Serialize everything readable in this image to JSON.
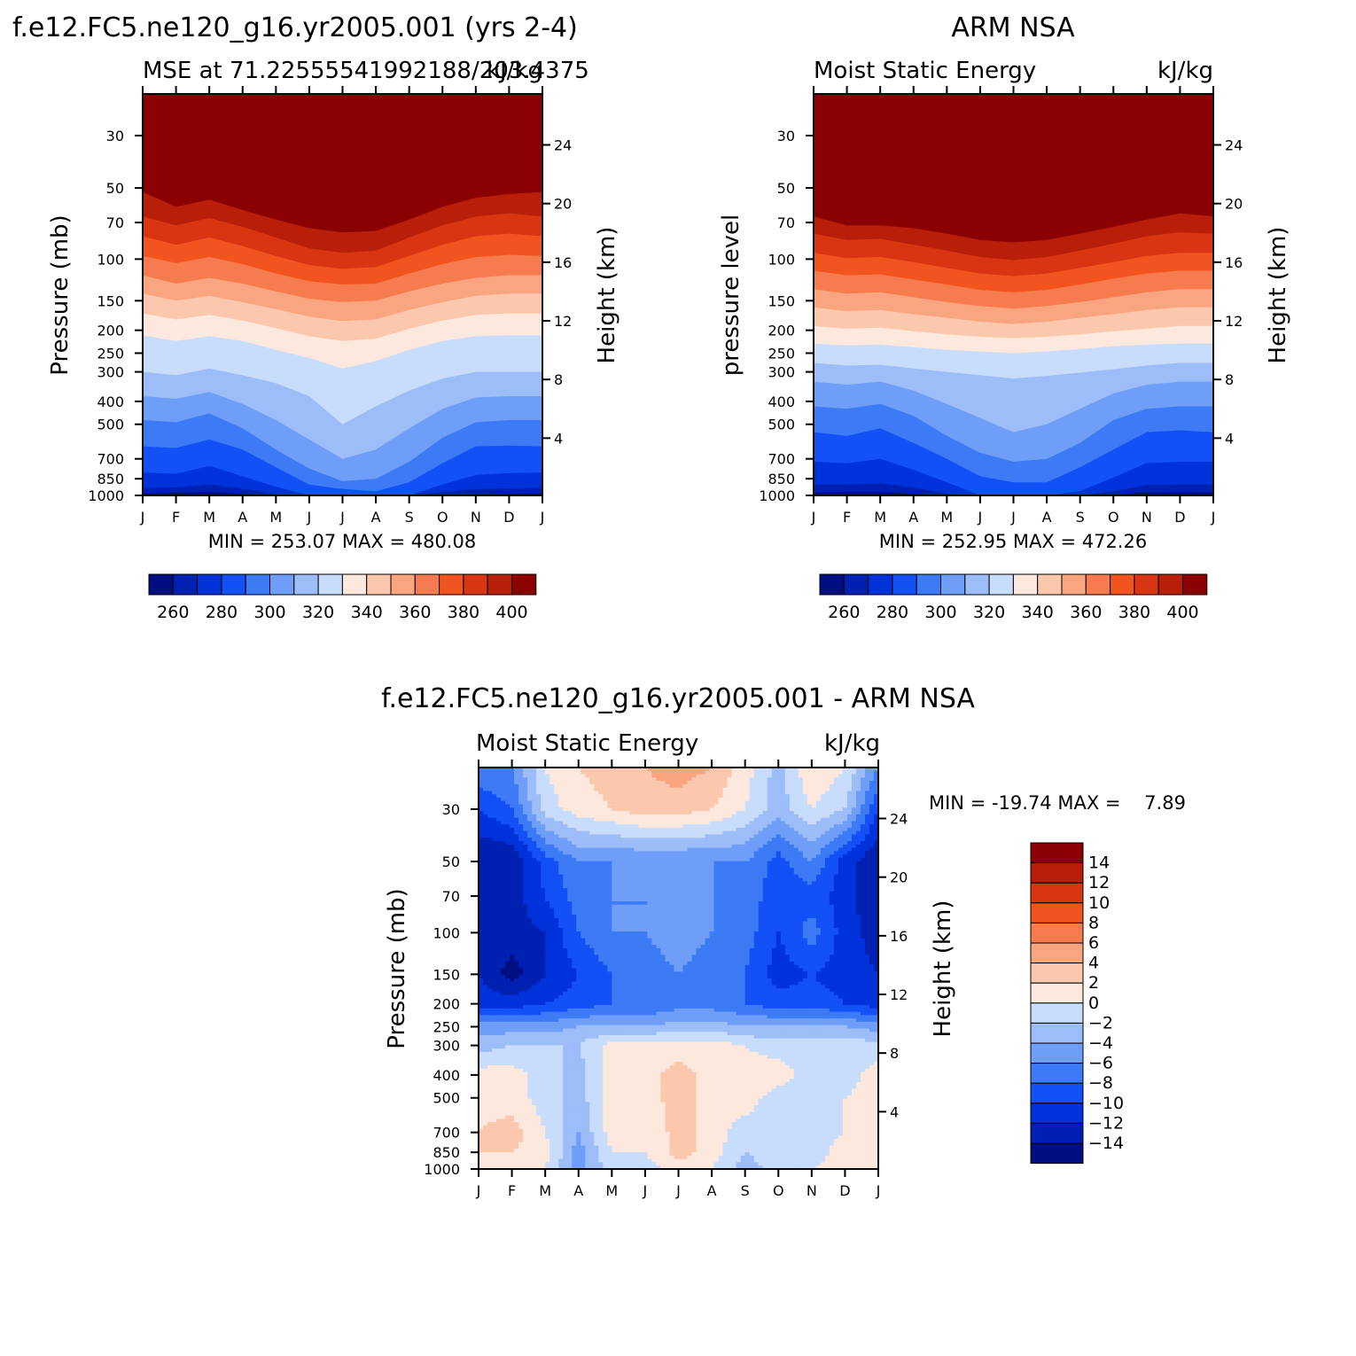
{
  "chart_data": [
    {
      "type": "heatmap",
      "id": "model",
      "title": "f.e12.FC5.ne120_g16.yr2005.001 (yrs 2-4)",
      "left_string": "MSE at 71.22555541992188/203.4375",
      "right_string": "kJ/kg",
      "ylabel": "Pressure (mb)",
      "ylabel_right": "Height (km)",
      "xticks": [
        "J",
        "F",
        "M",
        "A",
        "M",
        "J",
        "J",
        "A",
        "S",
        "O",
        "N",
        "D",
        "J"
      ],
      "pressure_ticks": [
        30,
        50,
        70,
        100,
        150,
        200,
        250,
        300,
        400,
        500,
        700,
        850,
        1000
      ],
      "height_ticks": [
        4,
        8,
        12,
        16,
        20,
        24
      ],
      "stats": "MIN = 253.07 MAX = 480.08",
      "contour_levels": [
        260,
        270,
        280,
        290,
        300,
        310,
        320,
        330,
        340,
        350,
        360,
        370,
        380,
        390,
        400
      ],
      "colorbar_labels": [
        260,
        280,
        300,
        320,
        340,
        360,
        380,
        400
      ],
      "level_boundaries_hPa": {
        "months": [
          1,
          2,
          3,
          4,
          5,
          6,
          7,
          8,
          9,
          10,
          11,
          12,
          13
        ],
        "260": [
          980,
          975,
          965,
          985,
          1000,
          1000,
          1000,
          1000,
          1000,
          1000,
          990,
          985,
          980
        ],
        "270": [
          930,
          925,
          900,
          935,
          990,
          1000,
          1000,
          1000,
          1000,
          970,
          940,
          935,
          930
        ],
        "280": [
          800,
          810,
          750,
          830,
          920,
          1000,
          1000,
          1000,
          1000,
          900,
          820,
          805,
          800
        ],
        "290": [
          620,
          630,
          580,
          640,
          760,
          900,
          940,
          960,
          880,
          730,
          620,
          615,
          620
        ],
        "300": [
          480,
          490,
          450,
          520,
          640,
          770,
          870,
          850,
          720,
          570,
          490,
          480,
          480
        ],
        "310": [
          380,
          390,
          365,
          410,
          480,
          580,
          700,
          640,
          520,
          430,
          385,
          380,
          380
        ],
        "320": [
          300,
          310,
          290,
          310,
          335,
          380,
          500,
          420,
          360,
          320,
          300,
          300,
          300
        ],
        "330": [
          210,
          222,
          212,
          222,
          242,
          262,
          290,
          270,
          242,
          222,
          212,
          210,
          210
        ],
        "340": [
          170,
          180,
          172,
          182,
          196,
          212,
          222,
          217,
          197,
          182,
          172,
          170,
          170
        ],
        "350": [
          140,
          150,
          143,
          152,
          163,
          175,
          183,
          180,
          164,
          152,
          143,
          140,
          140
        ],
        "360": [
          117,
          127,
          120,
          127,
          137,
          147,
          152,
          150,
          137,
          127,
          120,
          117,
          117
        ],
        "370": [
          97,
          104,
          98,
          105,
          115,
          124,
          128,
          127,
          115,
          105,
          98,
          96,
          97
        ],
        "380": [
          80,
          87,
          81,
          88,
          97,
          106,
          110,
          108,
          97,
          87,
          80,
          78,
          80
        ],
        "390": [
          66,
          72,
          67,
          73,
          81,
          90,
          94,
          92,
          81,
          72,
          66,
          64,
          66
        ],
        "400": [
          52,
          60,
          56,
          62,
          68,
          74,
          77,
          76,
          68,
          60,
          55,
          53,
          52
        ]
      }
    },
    {
      "type": "heatmap",
      "id": "obs",
      "title": "ARM NSA",
      "left_string": "Moist Static Energy",
      "right_string": "kJ/kg",
      "ylabel": "pressure level",
      "ylabel_right": "Height (km)",
      "xticks": [
        "J",
        "F",
        "M",
        "A",
        "M",
        "J",
        "J",
        "A",
        "S",
        "O",
        "N",
        "D",
        "J"
      ],
      "pressure_ticks": [
        30,
        50,
        70,
        100,
        150,
        200,
        250,
        300,
        400,
        500,
        700,
        850,
        1000
      ],
      "height_ticks": [
        4,
        8,
        12,
        16,
        20,
        24
      ],
      "stats": "MIN = 252.95 MAX = 472.26",
      "contour_levels": [
        260,
        270,
        280,
        290,
        300,
        310,
        320,
        330,
        340,
        350,
        360,
        370,
        380,
        390,
        400
      ],
      "colorbar_labels": [
        260,
        280,
        300,
        320,
        340,
        360,
        380,
        400
      ],
      "level_boundaries_hPa": {
        "months": [
          1,
          2,
          3,
          4,
          5,
          6,
          7,
          8,
          9,
          10,
          11,
          12,
          13
        ],
        "260": [
          970,
          965,
          965,
          985,
          1000,
          1000,
          1000,
          1000,
          1000,
          995,
          970,
          968,
          970
        ],
        "270": [
          900,
          900,
          890,
          925,
          985,
          1000,
          1000,
          1000,
          1000,
          960,
          905,
          900,
          900
        ],
        "280": [
          720,
          730,
          700,
          780,
          880,
          1000,
          1000,
          1000,
          960,
          840,
          730,
          720,
          720
        ],
        "290": [
          540,
          560,
          520,
          600,
          700,
          830,
          880,
          880,
          760,
          640,
          540,
          530,
          540
        ],
        "300": [
          420,
          430,
          410,
          460,
          560,
          660,
          720,
          700,
          600,
          480,
          430,
          420,
          420
        ],
        "310": [
          330,
          340,
          330,
          360,
          410,
          470,
          540,
          500,
          430,
          370,
          340,
          330,
          330
        ],
        "320": [
          275,
          282,
          280,
          290,
          300,
          310,
          320,
          312,
          302,
          292,
          282,
          275,
          275
        ],
        "330": [
          228,
          232,
          230,
          236,
          242,
          246,
          250,
          246,
          240,
          234,
          230,
          228,
          228
        ],
        "340": [
          192,
          197,
          195,
          202,
          208,
          213,
          216,
          213,
          208,
          202,
          197,
          192,
          192
        ],
        "350": [
          160,
          166,
          164,
          171,
          177,
          184,
          188,
          184,
          177,
          171,
          164,
          160,
          160
        ],
        "360": [
          134,
          140,
          138,
          145,
          152,
          158,
          162,
          158,
          152,
          145,
          138,
          134,
          134
        ],
        "370": [
          112,
          117,
          116,
          122,
          128,
          135,
          138,
          135,
          128,
          121,
          115,
          112,
          112
        ],
        "380": [
          94,
          99,
          98,
          103,
          109,
          115,
          118,
          115,
          109,
          103,
          97,
          94,
          94
        ],
        "390": [
          78,
          83,
          82,
          87,
          92,
          98,
          101,
          98,
          92,
          86,
          80,
          77,
          78
        ],
        "400": [
          66,
          72,
          72,
          74,
          78,
          83,
          85,
          83,
          78,
          73,
          68,
          64,
          66
        ]
      }
    },
    {
      "type": "heatmap",
      "id": "diff",
      "title": "f.e12.FC5.ne120_g16.yr2005.001 - ARM NSA",
      "left_string": "Moist Static Energy",
      "right_string": "kJ/kg",
      "ylabel": "Pressure (mb)",
      "ylabel_right": "Height (km)",
      "xticks": [
        "J",
        "F",
        "M",
        "A",
        "M",
        "J",
        "J",
        "A",
        "S",
        "O",
        "N",
        "D",
        "J"
      ],
      "pressure_ticks": [
        30,
        50,
        70,
        100,
        150,
        200,
        250,
        300,
        400,
        500,
        700,
        850,
        1000
      ],
      "height_ticks": [
        4,
        8,
        12,
        16,
        20,
        24
      ],
      "stats": "MIN = -19.74 MAX =    7.89",
      "contour_levels": [
        -14,
        -12,
        -10,
        -8,
        -6,
        -4,
        -2,
        0,
        2,
        4,
        6,
        8,
        10,
        12,
        14
      ],
      "colorbar_labels": [
        "14",
        "12",
        "10",
        "8",
        "6",
        "4",
        "2",
        "0",
        "−2",
        "−4",
        "−6",
        "−8",
        "−10",
        "−12",
        "−14"
      ],
      "grid_months": [
        1,
        2,
        3,
        4,
        5,
        6,
        7,
        8,
        9,
        10,
        11,
        12,
        13
      ],
      "grid_pressure_hPa": [
        20,
        30,
        50,
        70,
        100,
        150,
        200,
        250,
        300,
        400,
        500,
        700,
        850,
        1000
      ],
      "values": [
        [
          -6,
          -6,
          0,
          2,
          3,
          4,
          5,
          4,
          1,
          -3,
          2,
          0,
          -6
        ],
        [
          -10,
          -8,
          -1,
          1,
          2,
          3,
          3,
          2,
          0,
          -3,
          0,
          -2,
          -10
        ],
        [
          -14,
          -14,
          -9,
          -6,
          -6,
          -6,
          -6,
          -6,
          -6,
          -9,
          -6,
          -11,
          -14
        ],
        [
          -14,
          -13,
          -10,
          -7,
          -6,
          -6,
          -6,
          -6,
          -7,
          -9,
          -9,
          -11,
          -14
        ],
        [
          -12,
          -13,
          -12,
          -8,
          -6,
          -6,
          -5,
          -6,
          -7,
          -10,
          -7,
          -11,
          -13
        ],
        [
          -12,
          -15,
          -12,
          -10,
          -8,
          -7,
          -6,
          -7,
          -8,
          -11,
          -10,
          -11,
          -12
        ],
        [
          -11,
          -11,
          -10,
          -9,
          -8,
          -8,
          -7,
          -7,
          -8,
          -9,
          -9,
          -10,
          -11
        ],
        [
          -5,
          -5,
          -5,
          -4,
          -4,
          -4,
          -3,
          -3,
          -4,
          -4,
          -4,
          -4,
          -5
        ],
        [
          -3,
          -2,
          -2,
          -2,
          1,
          1,
          1,
          1,
          0,
          -1,
          -1,
          -1,
          -1
        ],
        [
          1,
          1,
          -1,
          -3,
          1,
          1,
          3,
          1,
          1,
          1,
          -1,
          -1,
          1
        ],
        [
          1,
          1,
          -1,
          -3,
          1,
          1,
          3,
          1,
          1,
          -1,
          -1,
          0,
          1
        ],
        [
          2,
          3,
          0,
          -4,
          1,
          0,
          3,
          1,
          -1,
          -1,
          -1,
          0,
          1
        ],
        [
          2,
          2,
          1,
          -5,
          0,
          0,
          3,
          1,
          -2,
          -1,
          -1,
          1,
          1
        ],
        [
          1,
          1,
          0,
          -5,
          -1,
          -1,
          1,
          0,
          -3,
          -1,
          0,
          1,
          0
        ]
      ]
    }
  ],
  "colors": {
    "cb_levels_16": [
      "#000e80",
      "#0020b2",
      "#0032d9",
      "#1350f5",
      "#3c7bf5",
      "#6e9ef7",
      "#9dbdf9",
      "#c8dcfb",
      "#fde8dd",
      "#fcc8ad",
      "#f9a57f",
      "#f67b4e",
      "#f25420",
      "#d93512",
      "#b81e08",
      "#8b0000"
    ]
  }
}
